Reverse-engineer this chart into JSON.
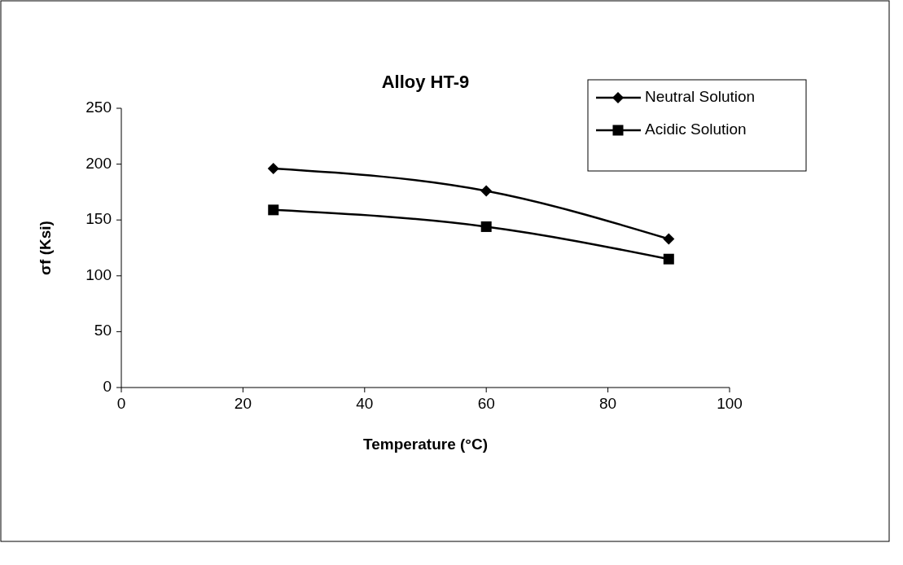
{
  "chart_data": {
    "type": "line",
    "title": "Alloy HT-9",
    "xlabel": "Temperature (°C)",
    "ylabel": "σf (Ksi)",
    "x": [
      25,
      60,
      90
    ],
    "series": [
      {
        "name": "Neutral Solution",
        "color": "#000000",
        "marker": "diamond",
        "values": [
          196,
          176,
          133
        ]
      },
      {
        "name": "Acidic Solution",
        "color": "#000000",
        "marker": "square",
        "values": [
          159,
          144,
          115
        ]
      }
    ],
    "xlim": [
      0,
      100
    ],
    "xticks": [
      0,
      20,
      40,
      60,
      80,
      100
    ],
    "ylim": [
      0,
      250
    ],
    "yticks": [
      0,
      50,
      100,
      150,
      200,
      250
    ],
    "grid": false,
    "legend": "top right",
    "line_style": "solid"
  }
}
